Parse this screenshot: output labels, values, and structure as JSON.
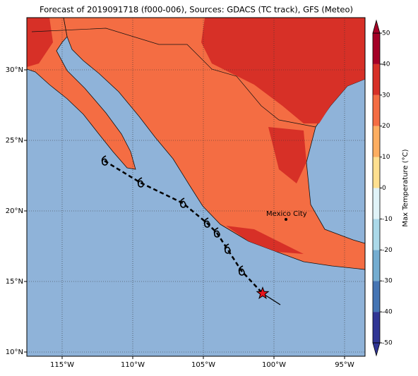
{
  "chart_data": {
    "type": "map",
    "title": "Forecast of 2019091718 (f000-006), Sources: GDACS (TC track), GFS (Meteo)",
    "xlim": [
      -117.5,
      -93.55
    ],
    "ylim": [
      9.7,
      33.7
    ],
    "xticks": [
      {
        "value": -115,
        "label": "115°W"
      },
      {
        "value": -110,
        "label": "110°W"
      },
      {
        "value": -105,
        "label": "105°W"
      },
      {
        "value": -100,
        "label": "100°W"
      },
      {
        "value": -95,
        "label": "95°W"
      }
    ],
    "yticks": [
      {
        "value": 10,
        "label": "10°N"
      },
      {
        "value": 15,
        "label": "15°N"
      },
      {
        "value": 20,
        "label": "20°N"
      },
      {
        "value": 25,
        "label": "25°N"
      },
      {
        "value": 30,
        "label": "30°N"
      }
    ],
    "grid": true,
    "track": {
      "lon": [
        -112.0,
        -109.45,
        -106.45,
        -104.75,
        -104.05,
        -103.3,
        -102.3,
        -100.8,
        -99.55
      ],
      "lat": [
        23.55,
        22.0,
        20.55,
        19.15,
        18.45,
        17.3,
        15.75,
        14.15,
        13.35
      ]
    },
    "city": {
      "name": "Mexico City",
      "lon": -99.15,
      "lat": 19.4
    },
    "colorbar": {
      "label": "Max Temperature (°C)",
      "lim": [
        -50,
        50
      ],
      "ticks": [
        -50,
        -40,
        -30,
        -20,
        -10,
        0,
        10,
        20,
        30,
        40,
        50
      ],
      "colors": [
        "#313695",
        "#4575b4",
        "#74add1",
        "#abd9e9",
        "#e0f3f8",
        "#fee090",
        "#fdae61",
        "#f46d43",
        "#d73027",
        "#a50026"
      ]
    }
  }
}
